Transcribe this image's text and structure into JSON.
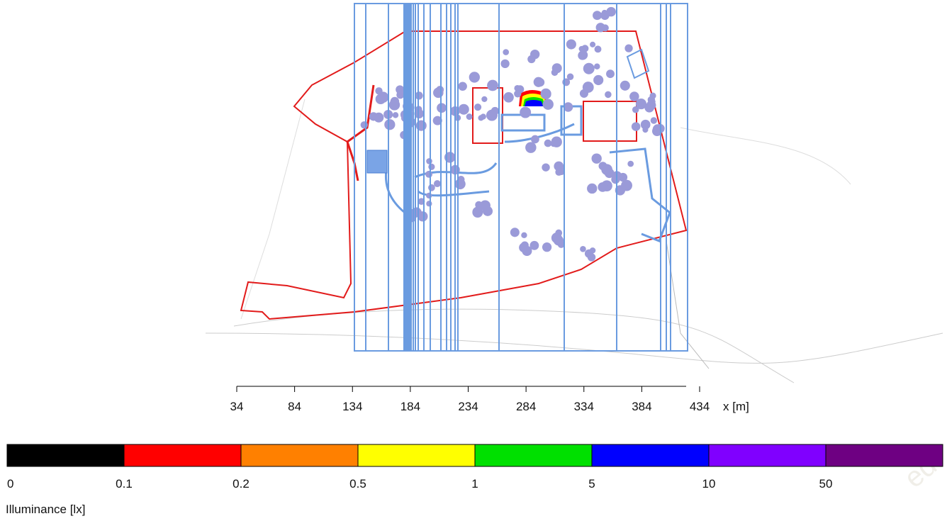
{
  "x_axis": {
    "label": "x [m]",
    "ticks": [
      34,
      84,
      134,
      184,
      234,
      284,
      334,
      384,
      434
    ]
  },
  "legend": {
    "title": "Illuminance [lx]",
    "thresholds": [
      0,
      0.1,
      0.2,
      0.5,
      1,
      5,
      10,
      50
    ],
    "colors": [
      "#000000",
      "#ff0000",
      "#ff8000",
      "#ffff00",
      "#00e000",
      "#0000ff",
      "#8000ff",
      "#6e0082"
    ]
  },
  "watermark": "ed!"
}
